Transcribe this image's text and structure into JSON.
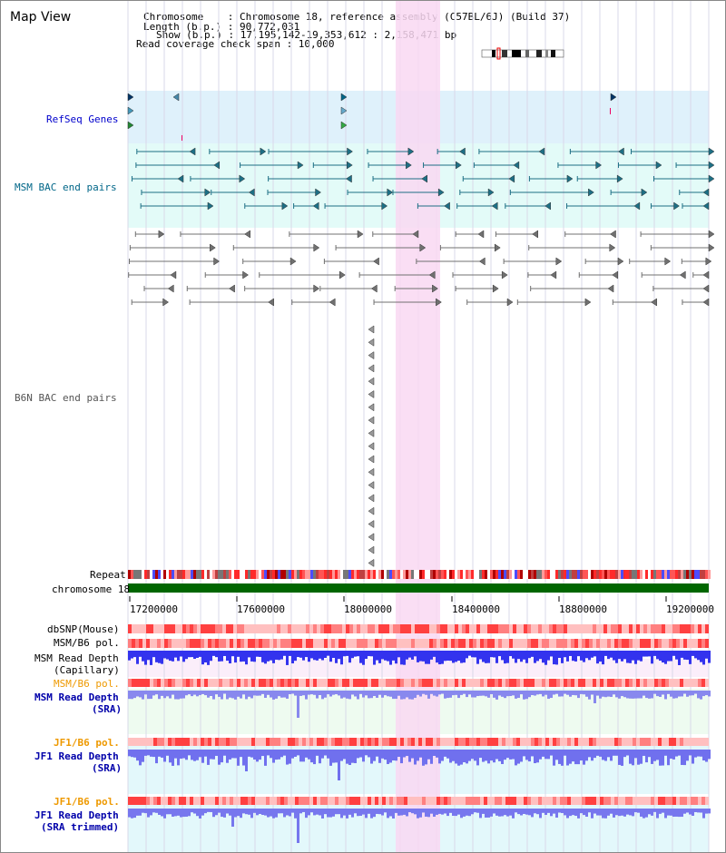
{
  "page_title": "Map View",
  "header": {
    "chromosome_label": "Chromosome    : Chromosome 18, reference assembly (C57BL/6J) (Build 37)",
    "length_label": "Length (b.p.) : 90,772,031",
    "show_label": "Show (b.p.) : 17,195,142-19,353,612 : 2,158,471 bp",
    "coverage_label": "Read coverage check span : 10,000"
  },
  "tracks": {
    "refseq": "RefSeq Genes",
    "msm_bac": "MSM BAC end pairs",
    "b6n_bac": "B6N BAC end pairs",
    "repeat": "Repeat",
    "chromosome": "chromosome 18",
    "dbsnp": "dbSNP(Mouse)",
    "msm_b6_pol_1": "MSM/B6 pol.",
    "msm_depth_cap_1": "MSM Read Depth",
    "msm_depth_cap_2": "(Capillary)",
    "msm_b6_pol_2": "MSM/B6 pol.",
    "msm_depth_sra_1": "MSM Read Depth",
    "msm_depth_sra_2": "(SRA)",
    "jf1_pol_1": "JF1/B6 pol.",
    "jf1_depth_sra_1": "JF1 Read Depth",
    "jf1_depth_sra_2": "(SRA)",
    "jf1_pol_2": "JF1/B6 pol.",
    "jf1_depth_trim_1": "JF1 Read Depth",
    "jf1_depth_trim_2": "(SRA trimmed)"
  },
  "axis": {
    "ticks": [
      "17200000",
      "17600000",
      "18000000",
      "18400000",
      "18800000",
      "19200000"
    ]
  },
  "colors": {
    "refseq_label": "#0000cc",
    "msm_label": "#006688",
    "b6n_label": "#555555",
    "pol_label": "#ee9900",
    "depth_label": "#0000aa",
    "highlight": "#f9d8f2",
    "chromosome_bar": "#006600"
  }
}
